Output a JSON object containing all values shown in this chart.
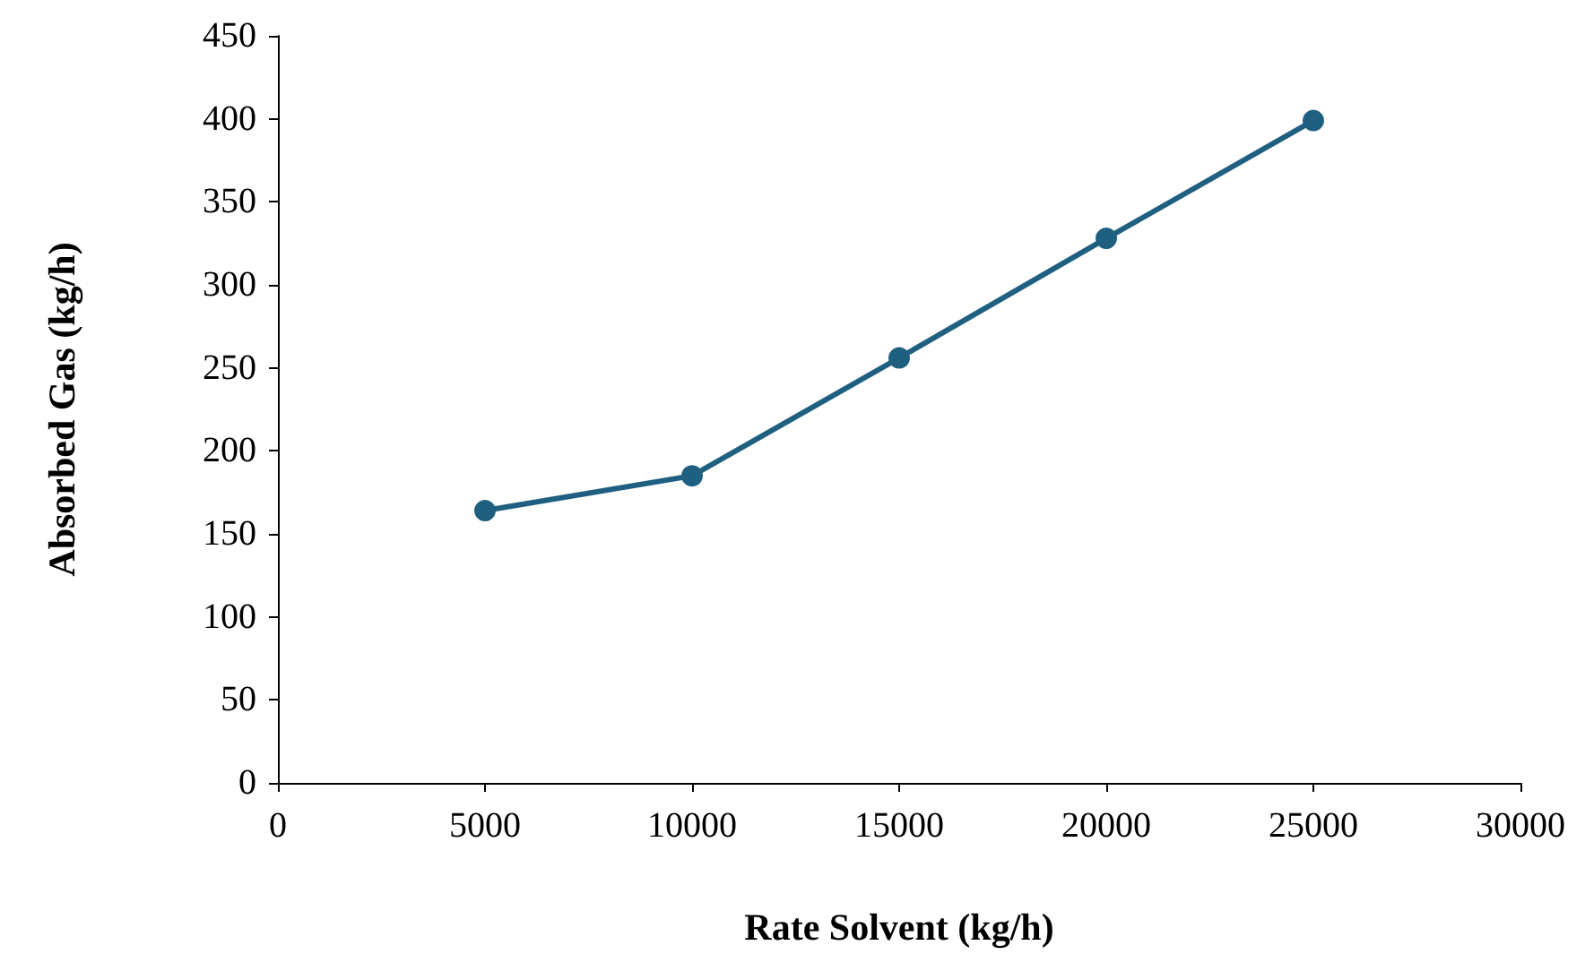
{
  "chart_data": {
    "type": "line",
    "xlabel": "Rate Solvent (kg/h)",
    "ylabel": "Absorbed Gas (kg/h)",
    "x": [
      5000,
      10000,
      15000,
      20000,
      25000
    ],
    "series": [
      {
        "color": "#1f5f80",
        "values": [
          164,
          185,
          256,
          328,
          399
        ]
      }
    ],
    "xlim": [
      0,
      30000
    ],
    "xticks": [
      0,
      5000,
      10000,
      15000,
      20000,
      25000,
      30000
    ],
    "ylim": [
      0,
      450
    ],
    "yticks": [
      0,
      50,
      100,
      150,
      200,
      250,
      300,
      350,
      400,
      450
    ],
    "grid": false,
    "marker": "circle",
    "line_style": "solid"
  }
}
